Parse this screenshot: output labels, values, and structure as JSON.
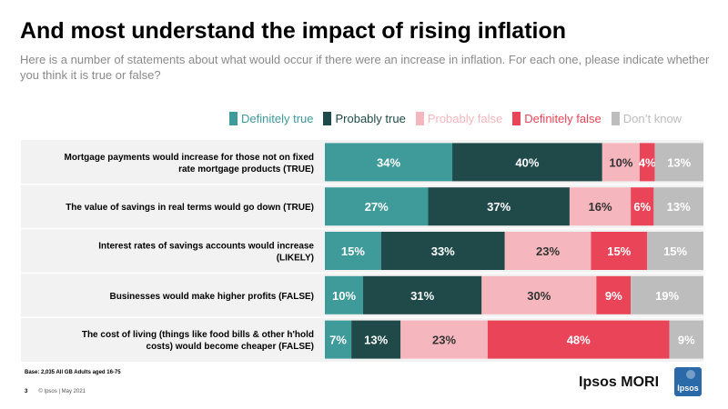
{
  "header": {
    "title": "And most understand the impact of rising inflation",
    "subtitle": "Here is a number of statements about what would occur if there were an increase in inflation. For each one, please indicate whether you think it is true or false?"
  },
  "legend": [
    {
      "label": "Definitely true",
      "color": "#3f9a9a"
    },
    {
      "label": "Probably true",
      "color": "#1f4a49"
    },
    {
      "label": "Probably false",
      "color": "#f5b6bd"
    },
    {
      "label": "Definitely false",
      "color": "#ea4458"
    },
    {
      "label": "Don’t know",
      "color": "#bdbdbd"
    }
  ],
  "chart_data": {
    "type": "bar",
    "orientation": "horizontal",
    "stacked": true,
    "categories": [
      "Mortgage payments would increase for those not on fixed rate mortgage products (TRUE)",
      "The value of savings in real terms would go down (TRUE)",
      "Interest rates of savings accounts would increase (LIKELY)",
      "Businesses would make higher profits (FALSE)",
      "The cost of living (things like food bills & other h'hold costs) would become cheaper (FALSE)"
    ],
    "category_lines": [
      [
        "Mortgage payments would increase for those not on fixed",
        "rate mortgage products (TRUE)"
      ],
      [
        "The value of savings in real terms would go down (TRUE)"
      ],
      [
        "Interest rates of savings accounts would increase",
        "(LIKELY)"
      ],
      [
        "Businesses would make higher profits (FALSE)"
      ],
      [
        "The cost of living (things like food bills & other h'hold",
        "costs) would become cheaper (FALSE)"
      ]
    ],
    "series": [
      {
        "name": "Definitely true",
        "color": "#3f9a9a",
        "values": [
          34,
          27,
          15,
          10,
          7
        ]
      },
      {
        "name": "Probably true",
        "color": "#1f4a49",
        "values": [
          40,
          37,
          33,
          31,
          13
        ]
      },
      {
        "name": "Probably false",
        "color": "#f5b6bd",
        "values": [
          10,
          16,
          23,
          30,
          23
        ]
      },
      {
        "name": "Definitely false",
        "color": "#ea4458",
        "values": [
          4,
          6,
          15,
          9,
          48
        ]
      },
      {
        "name": "Don’t know",
        "color": "#bdbdbd",
        "values": [
          13,
          13,
          15,
          19,
          9
        ]
      }
    ],
    "value_suffix": "%"
  },
  "footer": {
    "base": "Base: 2,035 All GB Adults aged 16-75",
    "page_number": "3",
    "copyright": "© Ipsos | May 2021",
    "brand": "Ipsos MORI",
    "logo_text": "Ipsos",
    "logo_color": "#2a6aa8"
  }
}
